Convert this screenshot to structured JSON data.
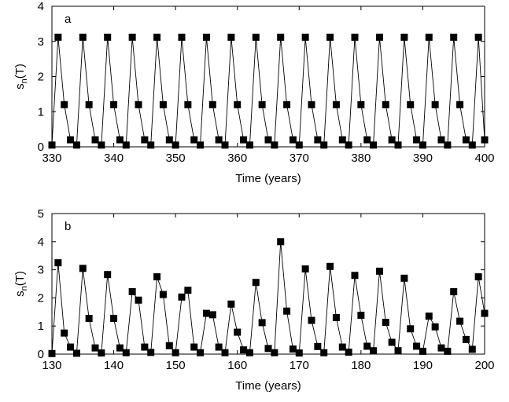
{
  "chart_data": [
    {
      "type": "line",
      "panel_label": "a",
      "xlabel": "Time (years)",
      "ylabel_base": "s",
      "ylabel_sub": "n",
      "ylabel_suffix": "(T)",
      "xlim": [
        330,
        400
      ],
      "ylim": [
        0,
        4
      ],
      "xticks": [
        330,
        340,
        350,
        360,
        370,
        380,
        390,
        400
      ],
      "yticks": [
        0,
        1,
        2,
        3,
        4
      ],
      "marker": "filled-square",
      "grid": false,
      "x": [
        330,
        331,
        332,
        333,
        334,
        335,
        336,
        337,
        338,
        339,
        340,
        341,
        342,
        343,
        344,
        345,
        346,
        347,
        348,
        349,
        350,
        351,
        352,
        353,
        354,
        355,
        356,
        357,
        358,
        359,
        360,
        361,
        362,
        363,
        364,
        365,
        366,
        367,
        368,
        369,
        370,
        371,
        372,
        373,
        374,
        375,
        376,
        377,
        378,
        379,
        380,
        381,
        382,
        383,
        384,
        385,
        386,
        387,
        388,
        389,
        390,
        391,
        392,
        393,
        394,
        395,
        396,
        397,
        398,
        399,
        400
      ],
      "y": [
        0.05,
        3.12,
        1.2,
        0.2,
        0.05,
        3.12,
        1.2,
        0.2,
        0.05,
        3.12,
        1.2,
        0.2,
        0.05,
        3.12,
        1.2,
        0.2,
        0.05,
        3.12,
        1.2,
        0.2,
        0.05,
        3.12,
        1.2,
        0.2,
        0.05,
        3.12,
        1.2,
        0.2,
        0.05,
        3.12,
        1.2,
        0.2,
        0.05,
        3.12,
        1.2,
        0.2,
        0.05,
        3.12,
        1.2,
        0.2,
        0.05,
        3.12,
        1.2,
        0.2,
        0.05,
        3.12,
        1.2,
        0.2,
        0.05,
        3.12,
        1.2,
        0.2,
        0.05,
        3.12,
        1.2,
        0.2,
        0.05,
        3.12,
        1.2,
        0.2,
        0.05,
        3.12,
        1.2,
        0.2,
        0.05,
        3.12,
        1.2,
        0.2,
        0.05,
        3.12,
        0.2
      ]
    },
    {
      "type": "line",
      "panel_label": "b",
      "xlabel": "Time (years)",
      "ylabel_base": "s",
      "ylabel_sub": "n",
      "ylabel_suffix": "(T)",
      "xlim": [
        130,
        200
      ],
      "ylim": [
        0,
        5
      ],
      "xticks": [
        130,
        140,
        150,
        160,
        170,
        180,
        190,
        200
      ],
      "yticks": [
        0,
        1,
        2,
        3,
        4,
        5
      ],
      "marker": "filled-square",
      "grid": false,
      "x": [
        130,
        131,
        132,
        133,
        134,
        135,
        136,
        137,
        138,
        139,
        140,
        141,
        142,
        143,
        144,
        145,
        146,
        147,
        148,
        149,
        150,
        151,
        152,
        153,
        154,
        155,
        156,
        157,
        158,
        159,
        160,
        161,
        162,
        163,
        164,
        165,
        166,
        167,
        168,
        169,
        170,
        171,
        172,
        173,
        174,
        175,
        176,
        177,
        178,
        179,
        180,
        181,
        182,
        183,
        184,
        185,
        186,
        187,
        188,
        189,
        190,
        191,
        192,
        193,
        194,
        195,
        196,
        197,
        198,
        199,
        200
      ],
      "y": [
        0.02,
        3.25,
        0.75,
        0.25,
        0.03,
        3.05,
        1.27,
        0.22,
        0.04,
        2.83,
        1.27,
        0.22,
        0.05,
        2.22,
        1.92,
        0.25,
        0.06,
        2.75,
        2.12,
        0.3,
        0.05,
        2.03,
        2.27,
        0.25,
        0.05,
        1.45,
        1.4,
        0.25,
        0.05,
        1.78,
        0.78,
        0.15,
        0.05,
        2.55,
        1.12,
        0.2,
        0.05,
        4.0,
        1.53,
        0.18,
        0.04,
        3.03,
        1.2,
        0.27,
        0.05,
        3.12,
        1.3,
        0.25,
        0.07,
        2.8,
        1.38,
        0.28,
        0.12,
        2.95,
        1.13,
        0.42,
        0.12,
        2.7,
        0.9,
        0.28,
        0.1,
        1.35,
        0.97,
        0.22,
        0.1,
        2.22,
        1.17,
        0.52,
        0.17,
        2.75,
        1.45
      ]
    }
  ]
}
